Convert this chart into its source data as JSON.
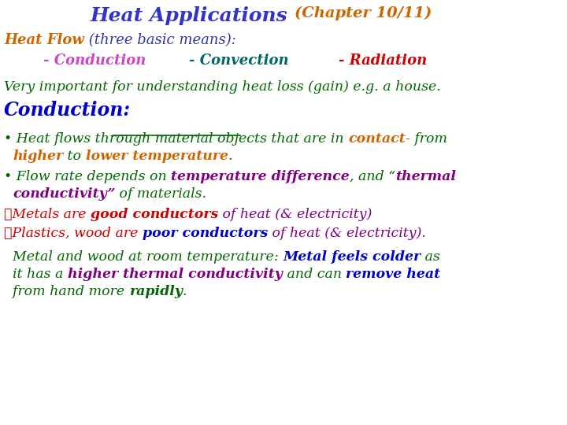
{
  "bg_color": "#ffffff",
  "title": "Heat Applications",
  "title_color": "#3333cc",
  "chapter": "(Chapter 10/11)",
  "chapter_color": "#cc6600",
  "line1_bold": "Heat Flow",
  "line1_bold_color": "#cc6600",
  "line1_rest": " (three basic means):",
  "line1_rest_color": "#3333aa",
  "means": [
    "- Conduction",
    "- Convection",
    "- Radiation"
  ],
  "means_colors": [
    "#cc44cc",
    "#006666",
    "#cc0000"
  ],
  "very_important": "Very important for understanding heat loss (gain) e.g. a house.",
  "vi_color": "#006600",
  "conduction_label": "Conduction:",
  "conduction_color": "#0000cc",
  "green": "#006600",
  "orange": "#cc6600",
  "purple": "#800080",
  "blue": "#0000cc",
  "red": "#cc0000",
  "darkgreen": "#006600"
}
